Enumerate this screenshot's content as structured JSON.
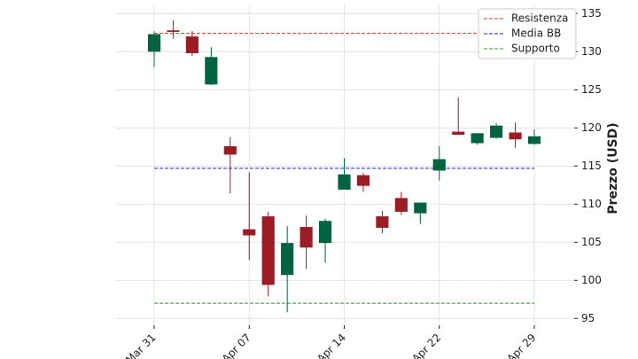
{
  "chart_data": {
    "type": "candlestick",
    "y_label": "Prezzo (USD)",
    "categories": [
      "Mar 31",
      null,
      null,
      null,
      null,
      "Apr 07",
      null,
      null,
      null,
      null,
      "Apr 14",
      null,
      null,
      null,
      null,
      "Apr 22",
      null,
      null,
      null,
      null,
      "Apr 29"
    ],
    "open": [
      130.0,
      132.8,
      132.0,
      125.7,
      117.6,
      106.7,
      108.4,
      100.7,
      107.0,
      104.9,
      111.9,
      113.8,
      108.4,
      110.8,
      108.8,
      114.4,
      119.5,
      118.0,
      118.7,
      119.4,
      117.9
    ],
    "high": [
      132.7,
      134.1,
      132.7,
      130.6,
      118.8,
      114.2,
      109.0,
      107.1,
      108.5,
      108.1,
      116.0,
      114.1,
      109.1,
      111.6,
      110.2,
      117.6,
      124.0,
      119.3,
      120.6,
      120.7,
      119.8
    ],
    "low": [
      128.0,
      131.7,
      129.4,
      125.6,
      111.4,
      102.7,
      97.9,
      95.8,
      101.5,
      102.3,
      111.9,
      111.6,
      106.2,
      108.6,
      107.4,
      113.1,
      119.1,
      117.8,
      118.6,
      117.4,
      117.8
    ],
    "close": [
      132.3,
      132.6,
      129.8,
      129.3,
      116.5,
      105.9,
      99.4,
      104.9,
      104.3,
      107.8,
      113.9,
      112.4,
      106.9,
      109.0,
      110.2,
      115.9,
      119.1,
      119.3,
      120.3,
      118.5,
      118.9
    ],
    "up_color": "#006340",
    "down_color": "#9b1c24",
    "hlines": [
      {
        "name": "Resistenza",
        "value": 132.4,
        "color": "#e8322e"
      },
      {
        "name": "Media BB",
        "value": 114.7,
        "color": "#2020d0"
      },
      {
        "name": "Supporto",
        "value": 97.0,
        "color": "#2a9a2a"
      }
    ],
    "ylim": [
      94.1,
      136.2
    ],
    "yticks": [
      95,
      100,
      105,
      110,
      115,
      120,
      125,
      130,
      135
    ],
    "grid": true,
    "legend": "upper right",
    "y_axis_side": "right"
  }
}
